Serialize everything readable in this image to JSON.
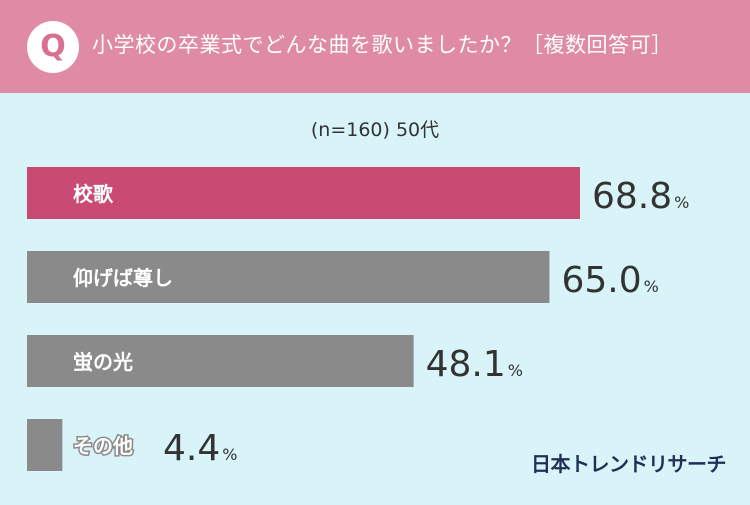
{
  "header": {
    "badge": "Q",
    "question": "小学校の卒業式でどんな曲を歌いましたか？［複数回答可］"
  },
  "subtitle": "(n=160) 50代",
  "logo": "日本トレンドリサーチ",
  "colors": {
    "highlight": "#c94a73",
    "default": "#8a8a8a"
  },
  "chart_data": {
    "type": "bar",
    "orientation": "horizontal",
    "categories": [
      "校歌",
      "仰げば尊し",
      "蛍の光",
      "その他"
    ],
    "values": [
      68.8,
      65.0,
      48.1,
      4.4
    ],
    "value_labels": [
      "68.8",
      "65.0",
      "48.1",
      "4.4"
    ],
    "unit": "%",
    "highlight_index": 0
  }
}
